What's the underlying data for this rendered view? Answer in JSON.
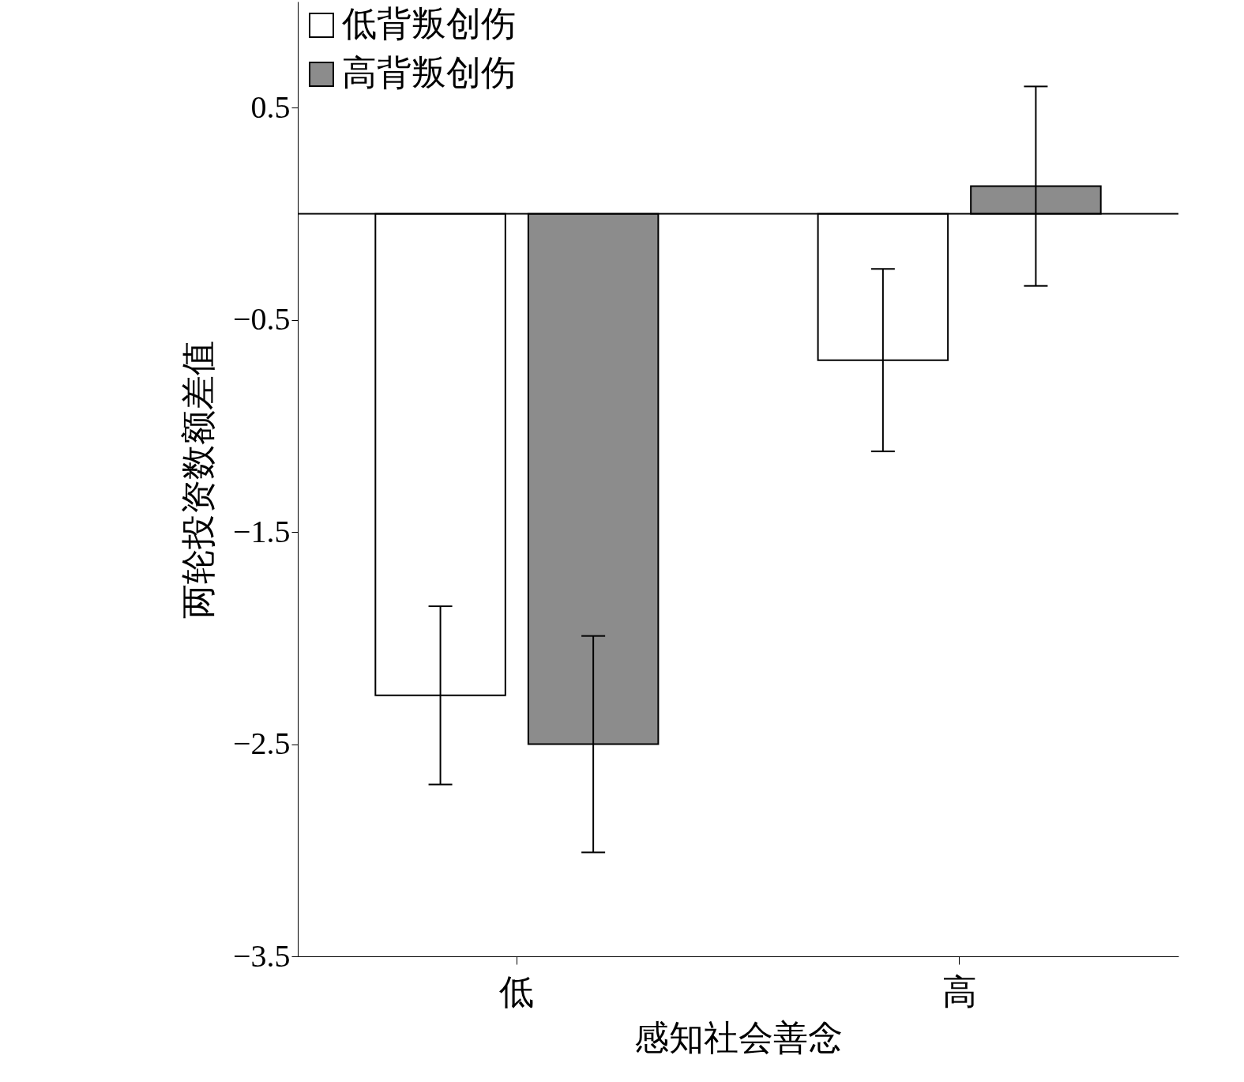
{
  "chart_data": {
    "type": "bar",
    "xlabel": "感知社会善念",
    "ylabel": "两轮投资数额差值",
    "categories": [
      "低",
      "高"
    ],
    "series": [
      {
        "name": "低背叛创伤",
        "color": "#ffffff",
        "values": [
          -2.27,
          -0.69
        ],
        "errors": [
          0.42,
          0.43
        ]
      },
      {
        "name": "高背叛创伤",
        "color": "#8c8c8c",
        "values": [
          -2.5,
          0.13
        ],
        "errors": [
          0.51,
          0.47
        ]
      }
    ],
    "ylim": [
      -3.5,
      1.0
    ],
    "yticks": [
      {
        "value": -3.5,
        "label": "−3.5"
      },
      {
        "value": -2.5,
        "label": "−2.5"
      },
      {
        "value": -1.5,
        "label": "−1.5"
      },
      {
        "value": -0.5,
        "label": "−0.5"
      },
      0.5
    ],
    "ref_lines": [
      {
        "axis": "y",
        "value": 0,
        "label": null
      }
    ],
    "legend": "top left",
    "grid": false
  }
}
